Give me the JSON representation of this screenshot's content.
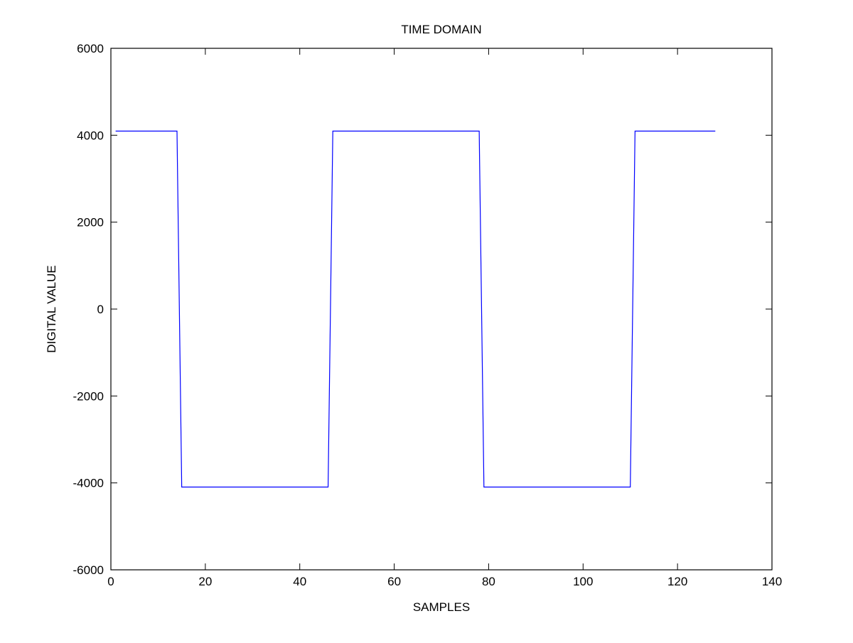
{
  "chart_data": {
    "type": "line",
    "title": "TIME DOMAIN",
    "xlabel": "SAMPLES",
    "ylabel": "DIGITAL VALUE",
    "xlim": [
      0,
      140
    ],
    "ylim": [
      -6000,
      6000
    ],
    "xticks": [
      0,
      20,
      40,
      60,
      80,
      100,
      120,
      140
    ],
    "yticks": [
      -6000,
      -4000,
      -2000,
      0,
      2000,
      4000,
      6000
    ],
    "grid": false,
    "series": [
      {
        "color": "#0000ff",
        "x": [
          1,
          14,
          15,
          46,
          47,
          78,
          79,
          110,
          111,
          128
        ],
        "y": [
          4095,
          4095,
          -4095,
          -4095,
          4095,
          4095,
          -4095,
          -4095,
          4095,
          4095
        ]
      }
    ]
  }
}
